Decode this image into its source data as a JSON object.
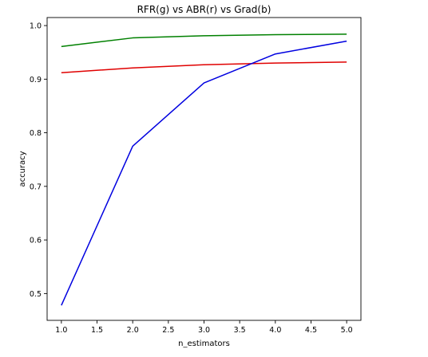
{
  "chart_data": {
    "type": "line",
    "title": "RFR(g) vs ABR(r) vs Grad(b)",
    "xlabel": "n_estimators",
    "ylabel": "accuracy",
    "x": [
      1,
      2,
      3,
      4,
      5
    ],
    "xlim": [
      0.8,
      5.2
    ],
    "ylim": [
      0.45,
      1.015
    ],
    "xticks": [
      "1.0",
      "1.5",
      "2.0",
      "2.5",
      "3.0",
      "3.5",
      "4.0",
      "4.5",
      "5.0"
    ],
    "xtick_values": [
      1.0,
      1.5,
      2.0,
      2.5,
      3.0,
      3.5,
      4.0,
      4.5,
      5.0
    ],
    "yticks": [
      "0.5",
      "0.6",
      "0.7",
      "0.8",
      "0.9",
      "1.0"
    ],
    "ytick_values": [
      0.5,
      0.6,
      0.7,
      0.8,
      0.9,
      1.0
    ],
    "grid": false,
    "series": [
      {
        "color": "#008000",
        "values": [
          0.961,
          0.977,
          0.981,
          0.983,
          0.984
        ]
      },
      {
        "color": "#e00000",
        "values": [
          0.912,
          0.921,
          0.927,
          0.93,
          0.932
        ]
      },
      {
        "color": "#0000e0",
        "values": [
          0.478,
          0.775,
          0.893,
          0.947,
          0.971
        ]
      }
    ]
  }
}
